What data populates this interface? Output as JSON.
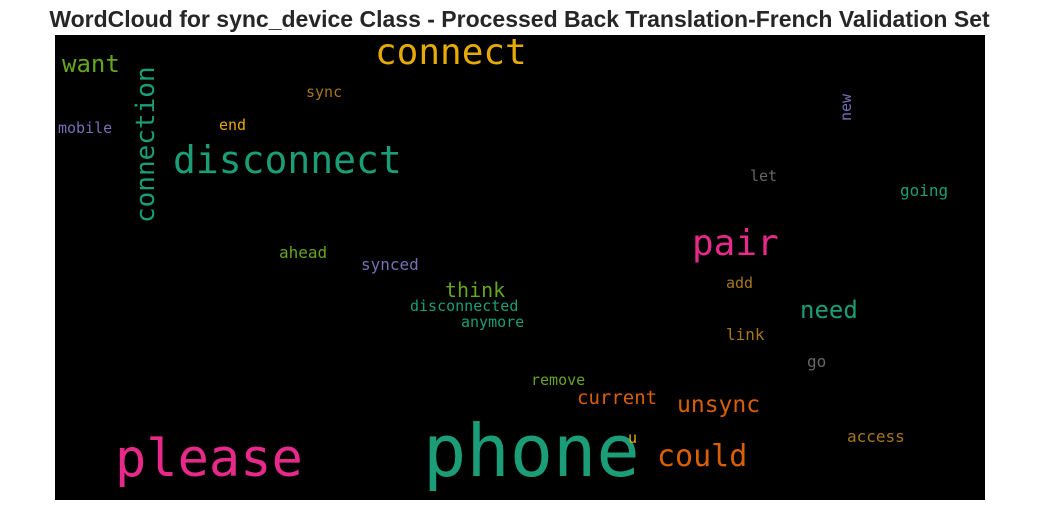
{
  "chart_data": {
    "type": "wordcloud",
    "title": "WordCloud for sync_device Class - Processed Back Translation-French Validation Set",
    "background": "#000000",
    "words": [
      {
        "text": "phone",
        "color": "#1b9e77"
      },
      {
        "text": "please",
        "color": "#e7298a"
      },
      {
        "text": "connect",
        "color": "#e6ab02"
      },
      {
        "text": "disconnect",
        "color": "#1b9e77"
      },
      {
        "text": "pair",
        "color": "#e7298a"
      },
      {
        "text": "could",
        "color": "#d95f02"
      },
      {
        "text": "connection",
        "color": "#1b9e77"
      },
      {
        "text": "want",
        "color": "#66a61e"
      },
      {
        "text": "need",
        "color": "#1b9e77"
      },
      {
        "text": "unsync",
        "color": "#d95f02"
      },
      {
        "text": "current",
        "color": "#d95f02"
      },
      {
        "text": "think",
        "color": "#66a61e"
      },
      {
        "text": "disconnected",
        "color": "#1b9e77"
      },
      {
        "text": "synced",
        "color": "#7570b3"
      },
      {
        "text": "ahead",
        "color": "#66a61e"
      },
      {
        "text": "anymore",
        "color": "#1b9e77"
      },
      {
        "text": "remove",
        "color": "#66a61e"
      },
      {
        "text": "access",
        "color": "#a6761d"
      },
      {
        "text": "add",
        "color": "#a6761d"
      },
      {
        "text": "link",
        "color": "#a6761d"
      },
      {
        "text": "go",
        "color": "#666666"
      },
      {
        "text": "let",
        "color": "#666666"
      },
      {
        "text": "going",
        "color": "#1b9e77"
      },
      {
        "text": "new",
        "color": "#7570b3"
      },
      {
        "text": "mobile",
        "color": "#7570b3"
      },
      {
        "text": "end",
        "color": "#e6ab02"
      },
      {
        "text": "sync",
        "color": "#a6761d"
      },
      {
        "text": "u",
        "color": "#e6ab02"
      }
    ]
  }
}
